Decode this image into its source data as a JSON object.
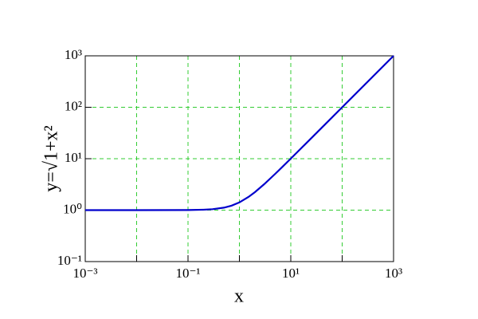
{
  "chart_data": {
    "type": "line",
    "xlabel": "x",
    "ylabel": "y=√1+x²",
    "x": [
      0.001,
      0.01,
      0.1,
      0.2,
      0.3,
      0.5,
      0.7,
      1,
      1.5,
      2,
      3,
      5,
      7,
      10,
      20,
      50,
      100,
      1000
    ],
    "series": [
      {
        "color": "#0000cc",
        "values": [
          1.0,
          1.0,
          1.005,
          1.02,
          1.044,
          1.118,
          1.221,
          1.414,
          1.803,
          2.236,
          3.162,
          5.099,
          7.071,
          10.05,
          20.02,
          50.01,
          100.0,
          1000.0
        ]
      }
    ],
    "xlim": [
      0.001,
      1000
    ],
    "ylim": [
      0.1,
      1000
    ],
    "xscale": "log",
    "yscale": "log",
    "xticks": [
      {
        "value": 0.001,
        "label": "10⁻³"
      },
      {
        "value": 0.01,
        "label": ""
      },
      {
        "value": 0.1,
        "label": "10⁻¹"
      },
      {
        "value": 1,
        "label": ""
      },
      {
        "value": 10,
        "label": "10¹"
      },
      {
        "value": 100,
        "label": ""
      },
      {
        "value": 1000,
        "label": "10³"
      }
    ],
    "yticks": [
      {
        "value": 0.1,
        "label": "10⁻¹"
      },
      {
        "value": 1,
        "label": "10⁰"
      },
      {
        "value": 10,
        "label": "10¹"
      },
      {
        "value": 100,
        "label": "10²"
      },
      {
        "value": 1000,
        "label": "10³"
      }
    ],
    "grid": true,
    "grid_color": "#33cc33"
  }
}
